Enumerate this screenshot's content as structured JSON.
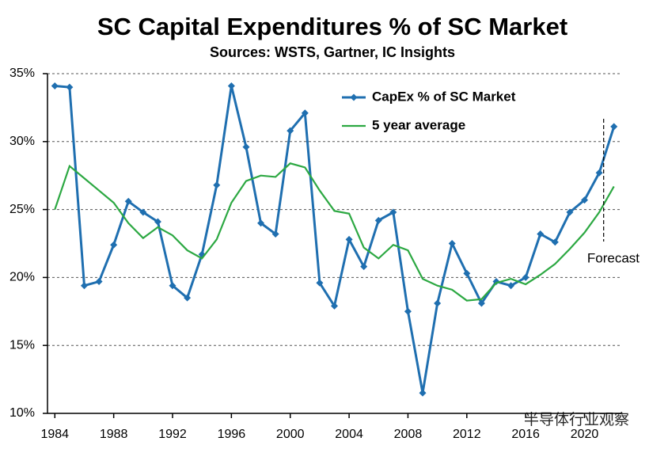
{
  "chart_data": {
    "type": "line",
    "title": "SC Capital Expenditures % of SC Market",
    "subtitle": "Sources: WSTS, Gartner, IC Insights",
    "x": [
      1984,
      1985,
      1986,
      1987,
      1988,
      1989,
      1990,
      1991,
      1992,
      1993,
      1994,
      1995,
      1996,
      1997,
      1998,
      1999,
      2000,
      2001,
      2002,
      2003,
      2004,
      2005,
      2006,
      2007,
      2008,
      2009,
      2010,
      2011,
      2012,
      2013,
      2014,
      2015,
      2016,
      2017,
      2018,
      2019,
      2020,
      2021,
      2022
    ],
    "series": [
      {
        "name": "CapEx % of SC Market",
        "color": "#1f6fb0",
        "marker": "diamond",
        "values": [
          34.1,
          34.0,
          19.4,
          19.7,
          22.4,
          25.6,
          24.8,
          24.1,
          19.4,
          18.5,
          21.7,
          26.8,
          34.1,
          29.6,
          24.0,
          23.2,
          30.8,
          32.1,
          19.6,
          17.9,
          22.8,
          20.8,
          24.2,
          24.8,
          17.5,
          11.5,
          18.1,
          22.5,
          20.3,
          18.1,
          19.7,
          19.4,
          20.0,
          23.2,
          22.6,
          24.8,
          25.7,
          27.7,
          31.1
        ]
      },
      {
        "name": "5 year average",
        "color": "#2ca842",
        "marker": "none",
        "values": [
          25.0,
          28.2,
          27.3,
          26.4,
          25.5,
          24.0,
          22.9,
          23.7,
          23.1,
          22.0,
          21.4,
          22.8,
          25.5,
          27.1,
          27.5,
          27.4,
          28.4,
          28.1,
          26.4,
          24.9,
          24.7,
          22.2,
          21.4,
          22.4,
          22.0,
          19.9,
          19.4,
          19.1,
          18.3,
          18.4,
          19.6,
          19.9,
          19.5,
          20.2,
          21.0,
          22.1,
          23.3,
          24.8,
          26.7
        ]
      }
    ],
    "xlim": [
      1983.5,
      2022.5
    ],
    "xticks": [
      1984,
      1988,
      1992,
      1996,
      2000,
      2004,
      2008,
      2012,
      2016,
      2020
    ],
    "ylim": [
      10,
      35
    ],
    "yticks": [
      {
        "value": 10,
        "label": "10%"
      },
      {
        "value": 15,
        "label": "15%"
      },
      {
        "value": 20,
        "label": "20%"
      },
      {
        "value": 25,
        "label": "25%"
      },
      {
        "value": 30,
        "label": "30%"
      },
      {
        "value": 35,
        "label": "35%"
      }
    ],
    "grid": true,
    "legend": "top",
    "annotation": {
      "text": "Forecast",
      "x": 2021.3
    },
    "watermark": "半导体行业观察"
  }
}
